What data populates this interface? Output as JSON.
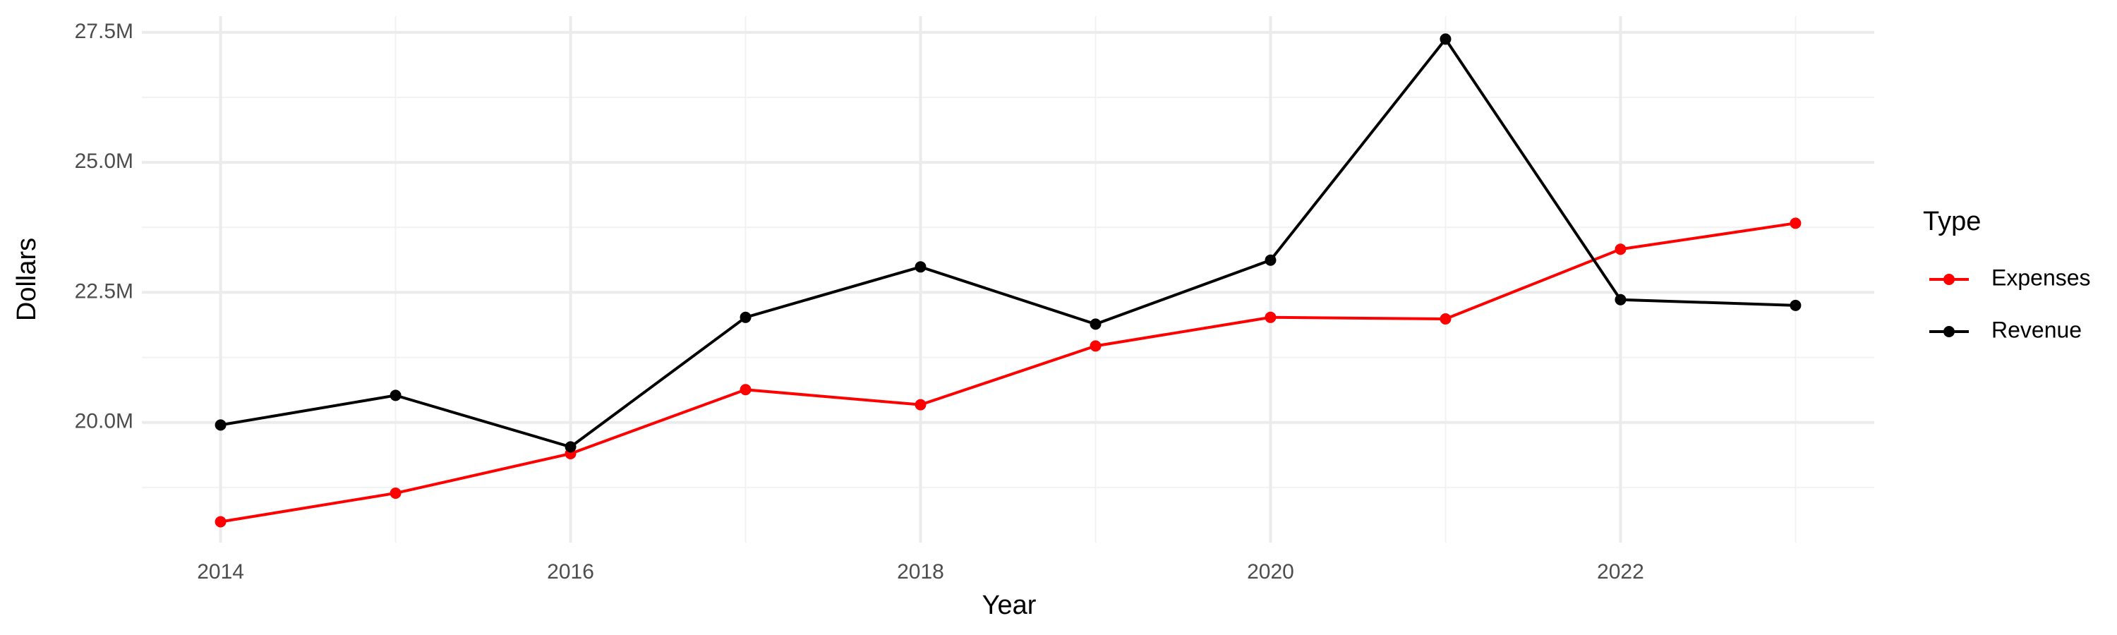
{
  "chart_data": {
    "type": "line",
    "x_label": "Year",
    "y_label": "Dollars",
    "legend_title": "Type",
    "legend_position": "right",
    "grid": true,
    "x": [
      2014,
      2015,
      2016,
      2017,
      2018,
      2019,
      2020,
      2021,
      2022,
      2023
    ],
    "series": [
      {
        "name": "Expenses",
        "color": "#ff0000",
        "values": [
          18090000,
          18640000,
          19400000,
          20630000,
          20340000,
          21470000,
          22020000,
          21990000,
          23330000,
          23830000
        ]
      },
      {
        "name": "Revenue",
        "color": "#000000",
        "values": [
          19950000,
          20520000,
          19530000,
          22020000,
          22990000,
          21890000,
          23120000,
          27370000,
          22360000,
          22250000
        ]
      }
    ],
    "xlim": [
      2013.55,
      2023.45
    ],
    "xticks": [
      2014,
      2016,
      2018,
      2020,
      2022
    ],
    "ylim": [
      17690000,
      27810000
    ],
    "yticks": [
      {
        "value": 20000000,
        "label": "20.0M"
      },
      {
        "value": 22500000,
        "label": "22.5M"
      },
      {
        "value": 25000000,
        "label": "25.0M"
      },
      {
        "value": 27500000,
        "label": "27.5M"
      }
    ]
  }
}
